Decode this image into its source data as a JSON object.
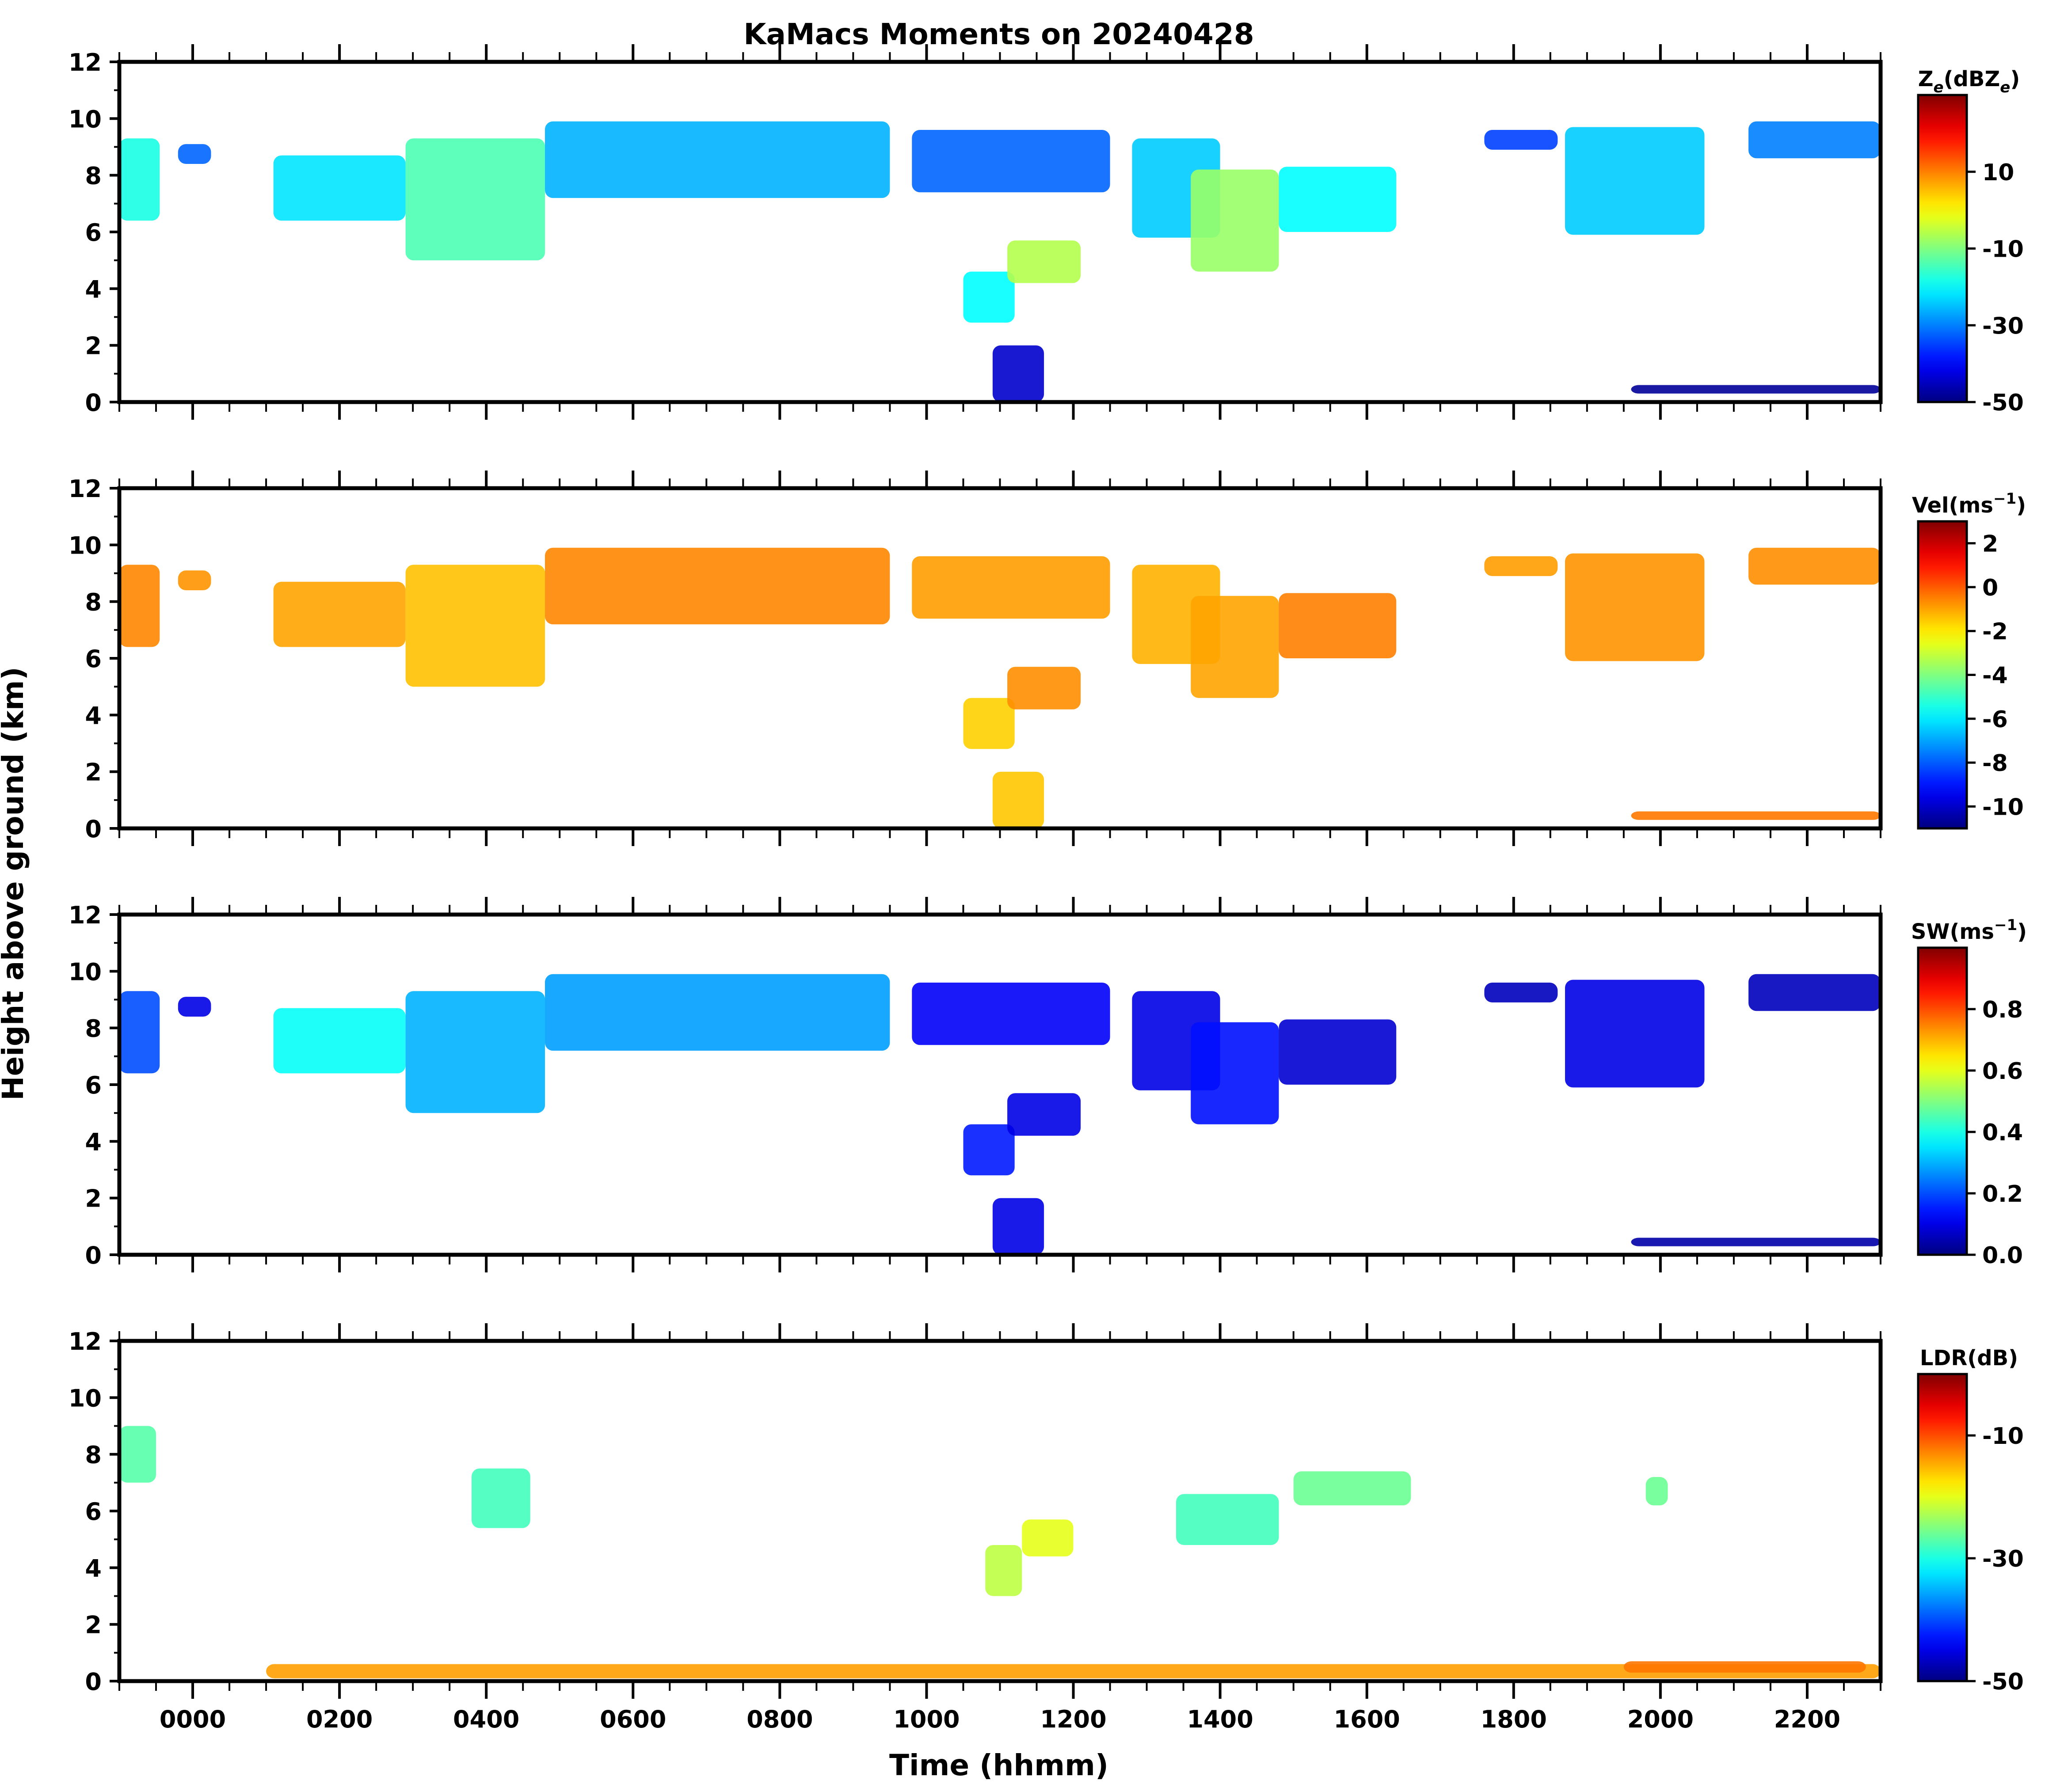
{
  "title": "KaMacs Moments on 20240428",
  "xlabel": "Time (hhmm)",
  "ylabel": "Height above ground (km)",
  "colors": {
    "frame": "#000000",
    "background": "#ffffff"
  },
  "chart_data": {
    "type": "heatmap",
    "x_axis": {
      "units": "hhmm",
      "range_hours": [
        -1.0,
        23.0
      ],
      "major_ticks_hours": [
        0,
        2,
        4,
        6,
        8,
        10,
        12,
        14,
        16,
        18,
        20,
        22
      ],
      "tick_labels": [
        "0000",
        "0200",
        "0400",
        "0600",
        "0800",
        "1000",
        "1200",
        "1400",
        "1600",
        "1800",
        "2000",
        "2200"
      ],
      "minor_tick_step_hours": 0.5
    },
    "y_axis": {
      "units": "km",
      "range": [
        0,
        12
      ],
      "ticks": [
        0,
        2,
        4,
        6,
        8,
        10,
        12
      ],
      "tick_labels": [
        "0",
        "2",
        "4",
        "6",
        "8",
        "10",
        "12"
      ]
    },
    "panels": [
      {
        "quantity": "Ze",
        "colorbar_label": "Ze(dBZe)",
        "label_main": "Z",
        "label_sub": "e",
        "label_mid": "(dBZ",
        "label_sub2": "e",
        "label_tail": ")",
        "cmap": "jet",
        "vmin": -50,
        "vmax": 30,
        "colorbar_ticks": [
          10,
          -10,
          -30,
          -50
        ],
        "colorbar_tick_labels": [
          "10",
          "-10",
          "-30",
          "-50"
        ],
        "regions": [
          {
            "t0": -1.0,
            "t1": -0.45,
            "zb": 6.4,
            "zt": 9.3,
            "v": -18
          },
          {
            "t0": -0.2,
            "t1": 0.25,
            "zb": 8.4,
            "zt": 9.1,
            "v": -32
          },
          {
            "t0": 1.1,
            "t1": 2.9,
            "zb": 6.4,
            "zt": 8.7,
            "v": -22
          },
          {
            "t0": 2.9,
            "t1": 4.8,
            "zb": 5.0,
            "zt": 9.3,
            "v": -14
          },
          {
            "t0": 4.8,
            "t1": 9.5,
            "zb": 7.2,
            "zt": 9.9,
            "v": -26
          },
          {
            "t0": 9.8,
            "t1": 12.5,
            "zb": 7.4,
            "zt": 9.6,
            "v": -32
          },
          {
            "t0": 10.5,
            "t1": 11.2,
            "zb": 2.8,
            "zt": 4.6,
            "v": -20
          },
          {
            "t0": 11.1,
            "t1": 12.1,
            "zb": 4.2,
            "zt": 5.7,
            "v": -6
          },
          {
            "t0": 12.8,
            "t1": 14.0,
            "zb": 5.8,
            "zt": 9.3,
            "v": -24
          },
          {
            "t0": 13.6,
            "t1": 14.8,
            "zb": 4.6,
            "zt": 8.2,
            "v": -8
          },
          {
            "t0": 14.8,
            "t1": 16.4,
            "zb": 6.0,
            "zt": 8.3,
            "v": -20
          },
          {
            "t0": 17.6,
            "t1": 18.6,
            "zb": 8.9,
            "zt": 9.6,
            "v": -35
          },
          {
            "t0": 18.7,
            "t1": 20.6,
            "zb": 5.9,
            "zt": 9.7,
            "v": -24
          },
          {
            "t0": 21.2,
            "t1": 23.0,
            "zb": 8.6,
            "zt": 9.9,
            "v": -30
          },
          {
            "t0": 10.9,
            "t1": 11.6,
            "zb": 0.0,
            "zt": 2.0,
            "v": -44
          },
          {
            "t0": 19.6,
            "t1": 23.0,
            "zb": 0.3,
            "zt": 0.6,
            "v": -48
          }
        ]
      },
      {
        "quantity": "Vel",
        "colorbar_label": "Vel(ms−1)",
        "label_main": "Vel(ms",
        "label_sup": "−1",
        "label_tail": ")",
        "cmap": "jet",
        "vmin": -11,
        "vmax": 3,
        "colorbar_ticks": [
          2,
          0,
          -2,
          -4,
          -6,
          -8,
          -10
        ],
        "colorbar_tick_labels": [
          "2",
          "0",
          "-2",
          "-4",
          "-6",
          "-8",
          "-10"
        ],
        "regions": [
          {
            "t0": -1.0,
            "t1": -0.45,
            "zb": 6.4,
            "zt": 9.3,
            "v": -0.6
          },
          {
            "t0": -0.2,
            "t1": 0.25,
            "zb": 8.4,
            "zt": 9.1,
            "v": -0.8
          },
          {
            "t0": 1.1,
            "t1": 2.9,
            "zb": 6.4,
            "zt": 8.7,
            "v": -1.0
          },
          {
            "t0": 2.9,
            "t1": 4.8,
            "zb": 5.0,
            "zt": 9.3,
            "v": -1.4
          },
          {
            "t0": 4.8,
            "t1": 9.5,
            "zb": 7.2,
            "zt": 9.9,
            "v": -0.6
          },
          {
            "t0": 9.8,
            "t1": 12.5,
            "zb": 7.4,
            "zt": 9.6,
            "v": -0.9
          },
          {
            "t0": 10.5,
            "t1": 11.2,
            "zb": 2.8,
            "zt": 4.6,
            "v": -1.6
          },
          {
            "t0": 11.1,
            "t1": 12.1,
            "zb": 4.2,
            "zt": 5.7,
            "v": -0.7
          },
          {
            "t0": 12.8,
            "t1": 14.0,
            "zb": 5.8,
            "zt": 9.3,
            "v": -1.2
          },
          {
            "t0": 13.6,
            "t1": 14.8,
            "zb": 4.6,
            "zt": 8.2,
            "v": -1.0
          },
          {
            "t0": 14.8,
            "t1": 16.4,
            "zb": 6.0,
            "zt": 8.3,
            "v": -0.5
          },
          {
            "t0": 17.6,
            "t1": 18.6,
            "zb": 8.9,
            "zt": 9.6,
            "v": -0.9
          },
          {
            "t0": 18.7,
            "t1": 20.6,
            "zb": 5.9,
            "zt": 9.7,
            "v": -0.8
          },
          {
            "t0": 21.2,
            "t1": 23.0,
            "zb": 8.6,
            "zt": 9.9,
            "v": -0.7
          },
          {
            "t0": 10.9,
            "t1": 11.6,
            "zb": 0.0,
            "zt": 2.0,
            "v": -1.5
          },
          {
            "t0": 19.6,
            "t1": 23.0,
            "zb": 0.3,
            "zt": 0.6,
            "v": -0.4
          }
        ]
      },
      {
        "quantity": "SW",
        "colorbar_label": "SW(ms−1)",
        "label_main": "SW(ms",
        "label_sup": "−1",
        "label_tail": ")",
        "cmap": "jet",
        "vmin": 0.0,
        "vmax": 1.0,
        "colorbar_ticks": [
          0.8,
          0.6,
          0.4,
          0.2,
          0.0
        ],
        "colorbar_tick_labels": [
          "0.8",
          "0.6",
          "0.4",
          "0.2",
          "0.0"
        ],
        "regions": [
          {
            "t0": -1.0,
            "t1": -0.45,
            "zb": 6.4,
            "zt": 9.3,
            "v": 0.2
          },
          {
            "t0": -0.2,
            "t1": 0.25,
            "zb": 8.4,
            "zt": 9.1,
            "v": 0.1
          },
          {
            "t0": 1.1,
            "t1": 2.9,
            "zb": 6.4,
            "zt": 8.7,
            "v": 0.38
          },
          {
            "t0": 2.9,
            "t1": 4.8,
            "zb": 5.0,
            "zt": 9.3,
            "v": 0.3
          },
          {
            "t0": 4.8,
            "t1": 9.5,
            "zb": 7.2,
            "zt": 9.9,
            "v": 0.28
          },
          {
            "t0": 9.8,
            "t1": 12.5,
            "zb": 7.4,
            "zt": 9.6,
            "v": 0.12
          },
          {
            "t0": 10.5,
            "t1": 11.2,
            "zb": 2.8,
            "zt": 4.6,
            "v": 0.15
          },
          {
            "t0": 11.1,
            "t1": 12.1,
            "zb": 4.2,
            "zt": 5.7,
            "v": 0.1
          },
          {
            "t0": 12.8,
            "t1": 14.0,
            "zb": 5.8,
            "zt": 9.3,
            "v": 0.1
          },
          {
            "t0": 13.6,
            "t1": 14.8,
            "zb": 4.6,
            "zt": 8.2,
            "v": 0.14
          },
          {
            "t0": 14.8,
            "t1": 16.4,
            "zb": 6.0,
            "zt": 8.3,
            "v": 0.08
          },
          {
            "t0": 17.6,
            "t1": 18.6,
            "zb": 8.9,
            "zt": 9.6,
            "v": 0.06
          },
          {
            "t0": 18.7,
            "t1": 20.6,
            "zb": 5.9,
            "zt": 9.7,
            "v": 0.1
          },
          {
            "t0": 21.2,
            "t1": 23.0,
            "zb": 8.6,
            "zt": 9.9,
            "v": 0.06
          },
          {
            "t0": 10.9,
            "t1": 11.6,
            "zb": 0.0,
            "zt": 2.0,
            "v": 0.1
          },
          {
            "t0": 19.6,
            "t1": 23.0,
            "zb": 0.3,
            "zt": 0.6,
            "v": 0.04
          }
        ]
      },
      {
        "quantity": "LDR",
        "colorbar_label": "LDR(dB)",
        "label_main": "LDR(dB)",
        "cmap": "jet",
        "vmin": -50,
        "vmax": 0,
        "colorbar_ticks": [
          -10,
          -30,
          -50
        ],
        "colorbar_tick_labels": [
          "-10",
          "-30",
          "-50"
        ],
        "regions": [
          {
            "t0": -1.0,
            "t1": -0.5,
            "zb": 7.0,
            "zt": 9.0,
            "v": -27
          },
          {
            "t0": 3.8,
            "t1": 4.6,
            "zb": 5.4,
            "zt": 7.5,
            "v": -28
          },
          {
            "t0": 10.8,
            "t1": 11.3,
            "zb": 3.0,
            "zt": 4.8,
            "v": -22
          },
          {
            "t0": 11.3,
            "t1": 12.0,
            "zb": 4.4,
            "zt": 5.7,
            "v": -20
          },
          {
            "t0": 13.4,
            "t1": 14.8,
            "zb": 4.8,
            "zt": 6.6,
            "v": -28
          },
          {
            "t0": 15.0,
            "t1": 16.6,
            "zb": 6.2,
            "zt": 7.4,
            "v": -26
          },
          {
            "t0": 19.8,
            "t1": 20.1,
            "zb": 6.2,
            "zt": 7.2,
            "v": -26
          },
          {
            "t0": 1.0,
            "t1": 23.0,
            "zb": 0.1,
            "zt": 0.6,
            "v": -14
          },
          {
            "t0": 19.5,
            "t1": 22.8,
            "zb": 0.3,
            "zt": 0.7,
            "v": -12
          }
        ]
      }
    ]
  }
}
